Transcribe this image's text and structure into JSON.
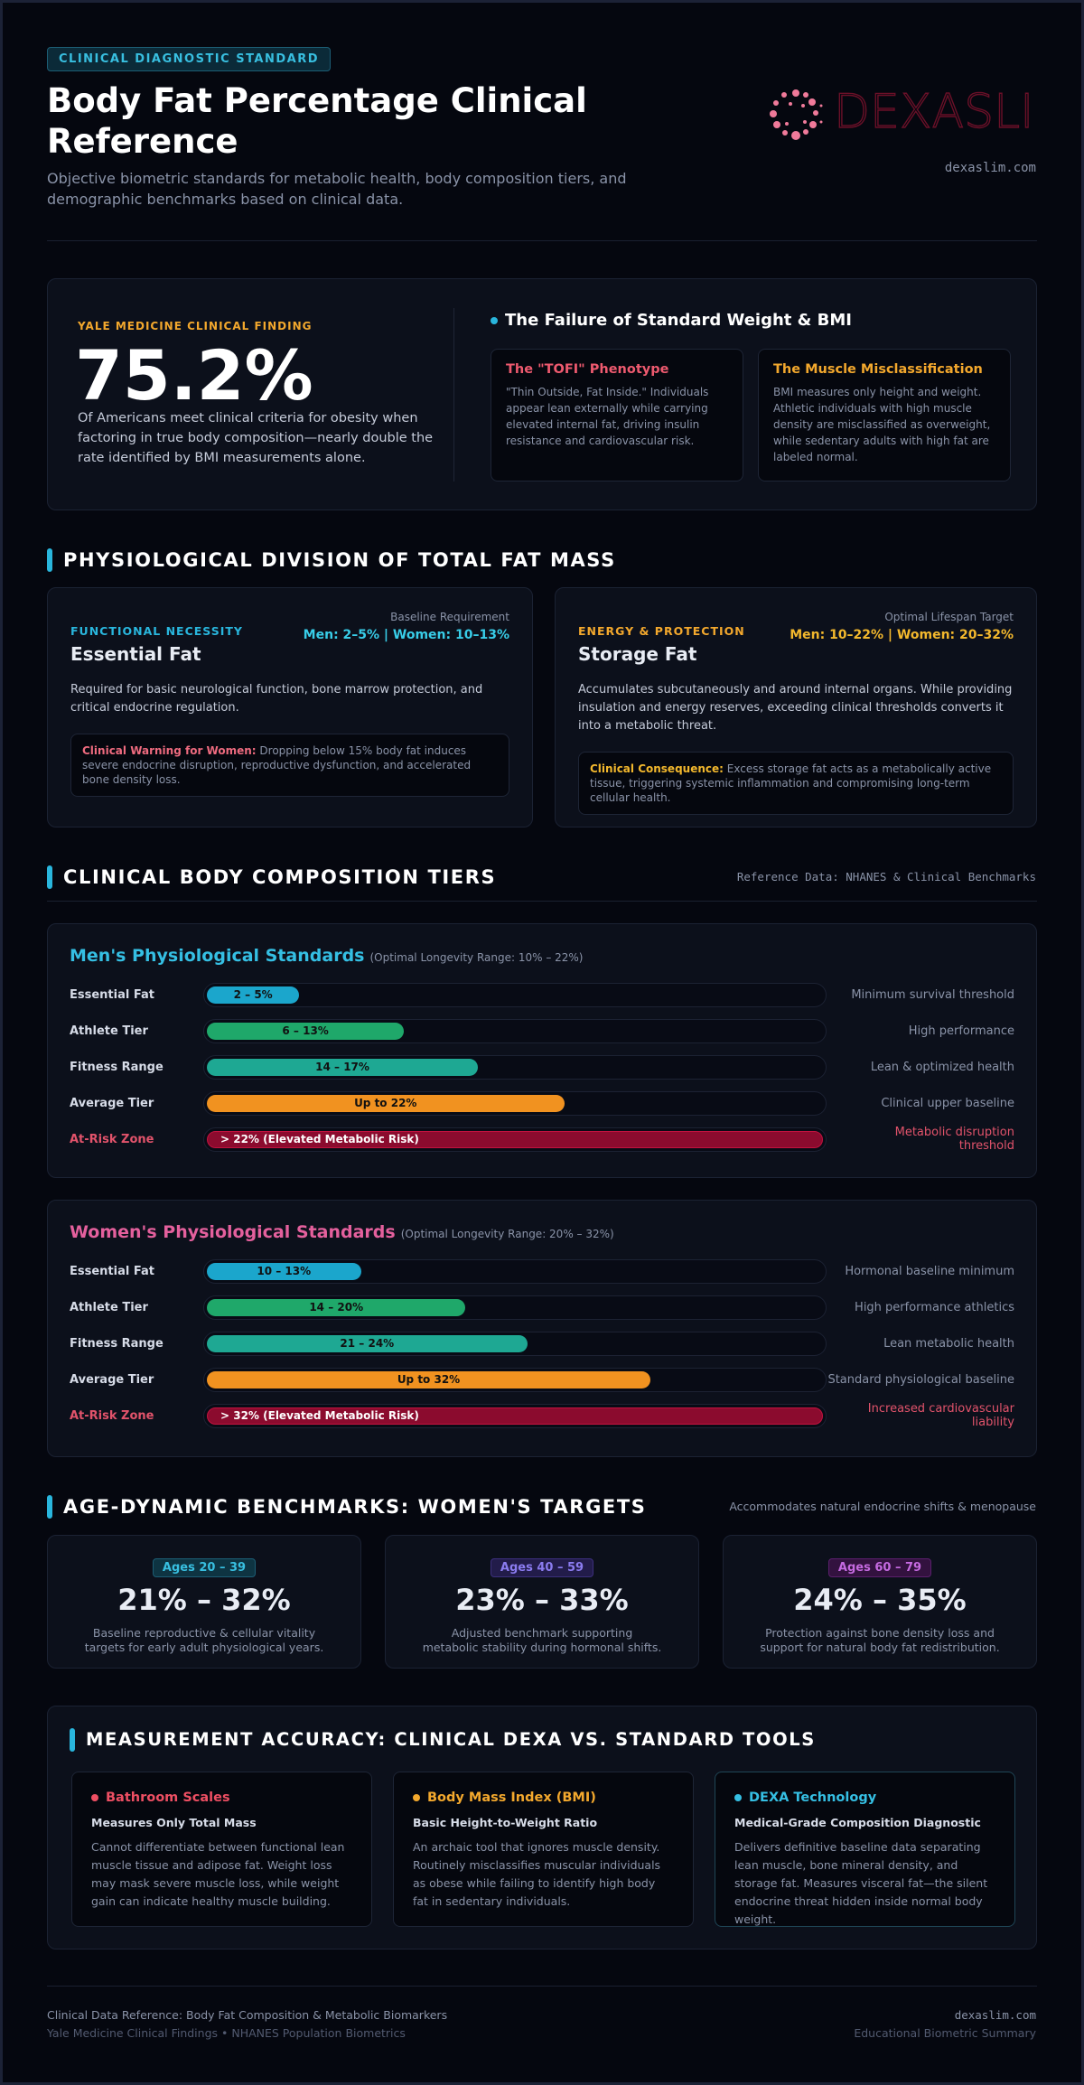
{
  "header": {
    "badge": "CLINICAL DIAGNOSTIC STANDARD",
    "title": "Body Fat Percentage Clinical Reference",
    "subtitle": "Objective biometric standards for metabolic health, body composition tiers, and demographic benchmarks based on clinical data.",
    "logo_text": "DEXASLIM",
    "site": "dexaslim.com"
  },
  "hero": {
    "label": "YALE MEDICINE CLINICAL FINDING",
    "stat": "75.2%",
    "text": "Of Americans meet clinical criteria for obesity when factoring in true body composition—nearly double the rate identified by BMI measurements alone.",
    "heading": "The Failure of Standard Weight & BMI",
    "cards": [
      {
        "title": "The \"TOFI\" Phenotype",
        "text": "\"Thin Outside, Fat Inside.\" Individuals appear lean externally while carrying elevated internal fat, driving insulin resistance and cardiovascular risk."
      },
      {
        "title": "The Muscle Misclassification",
        "text": "BMI measures only height and weight. Athletic individuals with high muscle density are misclassified as overweight, while sedentary adults with high fat are labeled normal."
      }
    ]
  },
  "division": {
    "heading": "PHYSIOLOGICAL DIVISION OF TOTAL FAT MASS",
    "cards": [
      {
        "tag": "FUNCTIONAL NECESSITY",
        "title": "Essential Fat",
        "req_label": "Baseline Requirement",
        "req_value": "Men: 2–5% | Women: 10–13%",
        "text": "Required for basic neurological function, bone marrow protection, and critical endocrine regulation.",
        "note_label": "Clinical Warning for Women:",
        "note_text": "Dropping below 15% body fat induces severe endocrine disruption, reproductive dysfunction, and accelerated bone density loss."
      },
      {
        "tag": "ENERGY & PROTECTION",
        "title": "Storage Fat",
        "req_label": "Optimal Lifespan Target",
        "req_value": "Men: 10–22% | Women: 20–32%",
        "text": "Accumulates subcutaneously and around internal organs. While providing insulation and energy reserves, exceeding clinical thresholds converts it into a metabolic threat.",
        "note_label": "Clinical Consequence:",
        "note_text": "Excess storage fat acts as a metabolically active tissue, triggering systemic inflammation and compromising long-term cellular health."
      }
    ]
  },
  "tiers": {
    "heading": "CLINICAL BODY COMPOSITION TIERS",
    "reference": "Reference Data: NHANES & Clinical Benchmarks",
    "groups": [
      {
        "title": "Men's Physiological Standards",
        "range": "(Optimal Longevity Range: 10% – 22%)",
        "rows": [
          {
            "label": "Essential Fat",
            "range": "2 – 5%",
            "note": "Minimum survival threshold"
          },
          {
            "label": "Athlete Tier",
            "range": "6 – 13%",
            "note": "High performance"
          },
          {
            "label": "Fitness Range",
            "range": "14 – 17%",
            "note": "Lean & optimized health"
          },
          {
            "label": "Average Tier",
            "range": "Up to 22%",
            "note": "Clinical upper baseline"
          },
          {
            "label": "At-Risk Zone",
            "range": "> 22% (Elevated Metabolic Risk)",
            "note": "Metabolic disruption threshold"
          }
        ]
      },
      {
        "title": "Women's Physiological Standards",
        "range": "(Optimal Longevity Range: 20% – 32%)",
        "rows": [
          {
            "label": "Essential Fat",
            "range": "10 – 13%",
            "note": "Hormonal baseline minimum"
          },
          {
            "label": "Athlete Tier",
            "range": "14 – 20%",
            "note": "High performance athletics"
          },
          {
            "label": "Fitness Range",
            "range": "21 – 24%",
            "note": "Lean metabolic health"
          },
          {
            "label": "Average Tier",
            "range": "Up to 32%",
            "note": "Standard physiological baseline"
          },
          {
            "label": "At-Risk Zone",
            "range": "> 32% (Elevated Metabolic Risk)",
            "note": "Increased cardiovascular liability"
          }
        ]
      }
    ]
  },
  "ages": {
    "heading": "AGE-DYNAMIC BENCHMARKS: WOMEN'S TARGETS",
    "note": "Accommodates natural endocrine shifts & menopause",
    "cards": [
      {
        "tag": "Ages 20 – 39",
        "range": "21% – 32%",
        "text": "Baseline reproductive & cellular vitality targets for early adult physiological years."
      },
      {
        "tag": "Ages 40 – 59",
        "range": "23% – 33%",
        "text": "Adjusted benchmark supporting metabolic stability during hormonal shifts."
      },
      {
        "tag": "Ages 60 – 79",
        "range": "24% – 35%",
        "text": "Protection against bone density loss and support for natural body fat redistribution."
      }
    ]
  },
  "accuracy": {
    "heading": "MEASUREMENT ACCURACY: CLINICAL DEXA VS. STANDARD TOOLS",
    "cards": [
      {
        "title": "Bathroom Scales",
        "subtitle": "Measures Only Total Mass",
        "text": "Cannot differentiate between functional lean muscle tissue and adipose fat. Weight loss may mask severe muscle loss, while weight gain can indicate healthy muscle building."
      },
      {
        "title": "Body Mass Index (BMI)",
        "subtitle": "Basic Height-to-Weight Ratio",
        "text": "An archaic tool that ignores muscle density. Routinely misclassifies muscular individuals as obese while failing to identify high body fat in sedentary individuals."
      },
      {
        "title": "DEXA Technology",
        "subtitle": "Medical-Grade Composition Diagnostic",
        "text": "Delivers definitive baseline data separating lean muscle, bone mineral density, and storage fat. Measures visceral fat—the silent endocrine threat hidden inside normal body weight."
      }
    ]
  },
  "footer": {
    "left1": "Clinical Data Reference: Body Fat Composition & Metabolic Biomarkers",
    "left2": "Yale Medicine Clinical Findings • NHANES Population Biometrics",
    "right1": "dexaslim.com",
    "right2": "Educational Biometric Summary"
  }
}
